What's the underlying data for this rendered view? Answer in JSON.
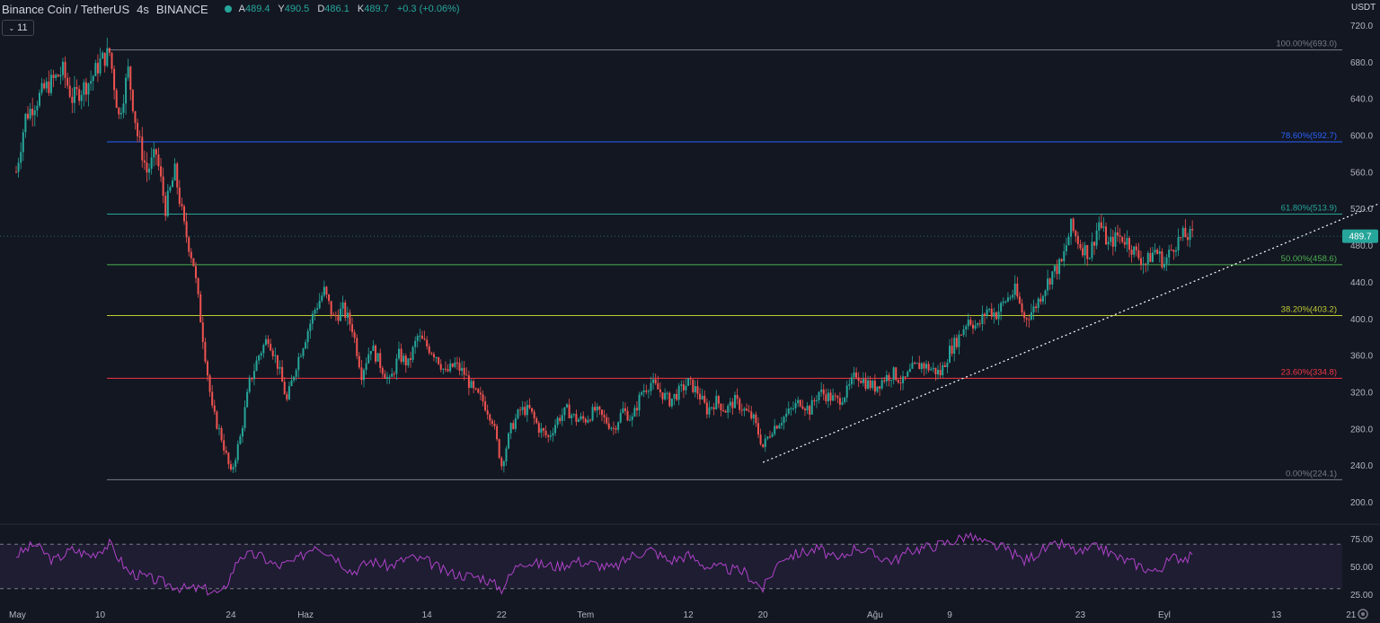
{
  "header": {
    "symbol": "Binance Coin / TetherUS",
    "timeframe": "4s",
    "exchange": "BINANCE",
    "open_label": "A",
    "open": "489.4",
    "high_label": "Y",
    "high": "490.5",
    "low_label": "D",
    "low": "486.1",
    "close_label": "K",
    "close": "489.7",
    "change": "+0.3 (+0.06%)"
  },
  "indicator_toggle": {
    "chevron": "⌄",
    "count": "11"
  },
  "colors": {
    "background": "#131722",
    "up": "#26a69a",
    "down": "#ef5350",
    "rsi": "#9c27b0",
    "price_badge": "#26a69a"
  },
  "chart_data": {
    "type": "candlestick",
    "symbol": "BNB/USDT",
    "y_axis": {
      "unit": "USDT",
      "ticks": [
        200,
        240,
        280,
        320,
        360,
        400,
        440,
        480,
        520,
        560,
        600,
        640,
        680,
        720
      ],
      "range": [
        180,
        728
      ]
    },
    "x_axis": {
      "ticks": [
        {
          "label": "May",
          "day": 0
        },
        {
          "label": "10",
          "day": 9
        },
        {
          "label": "24",
          "day": 23
        },
        {
          "label": "Haz",
          "day": 31
        },
        {
          "label": "14",
          "day": 44
        },
        {
          "label": "22",
          "day": 52
        },
        {
          "label": "Tem",
          "day": 61
        },
        {
          "label": "12",
          "day": 72
        },
        {
          "label": "20",
          "day": 80
        },
        {
          "label": "Ağu",
          "day": 92
        },
        {
          "label": "9",
          "day": 100
        },
        {
          "label": "23",
          "day": 114
        },
        {
          "label": "Eyl",
          "day": 123
        },
        {
          "label": "13",
          "day": 135
        },
        {
          "label": "21",
          "day": 143
        }
      ]
    },
    "current_price": "489.7",
    "fibonacci": [
      {
        "label": "100.00%(693.0)",
        "price": 693.0,
        "color": "#787b86"
      },
      {
        "label": "78.60%(592.7)",
        "price": 592.7,
        "color": "#2962ff"
      },
      {
        "label": "61.80%(513.9)",
        "price": 513.9,
        "color": "#26a69a"
      },
      {
        "label": "50.00%(458.6)",
        "price": 458.6,
        "color": "#4caf50"
      },
      {
        "label": "38.20%(403.2)",
        "price": 403.2,
        "color": "#c0ca33"
      },
      {
        "label": "23.60%(334.8)",
        "price": 334.8,
        "color": "#f23645"
      },
      {
        "label": "0.00%(224.1)",
        "price": 224.1,
        "color": "#787b86"
      }
    ],
    "fib_start_day": 10.8,
    "trendline": {
      "from": {
        "day": 80,
        "price": 243
      },
      "to": {
        "day": 156,
        "price": 568
      }
    },
    "price_path": [
      [
        0,
        560
      ],
      [
        1,
        620
      ],
      [
        3,
        650
      ],
      [
        5,
        670
      ],
      [
        6,
        640
      ],
      [
        8,
        660
      ],
      [
        9,
        680
      ],
      [
        10,
        690
      ],
      [
        11,
        620
      ],
      [
        12,
        670
      ],
      [
        13,
        600
      ],
      [
        14,
        560
      ],
      [
        15,
        580
      ],
      [
        16,
        520
      ],
      [
        17,
        560
      ],
      [
        18,
        500
      ],
      [
        19,
        460
      ],
      [
        20,
        380
      ],
      [
        21,
        300
      ],
      [
        22,
        270
      ],
      [
        23,
        230
      ],
      [
        24,
        270
      ],
      [
        25,
        330
      ],
      [
        26,
        360
      ],
      [
        27,
        380
      ],
      [
        28,
        350
      ],
      [
        29,
        310
      ],
      [
        30,
        350
      ],
      [
        31,
        380
      ],
      [
        32,
        410
      ],
      [
        33,
        430
      ],
      [
        34,
        400
      ],
      [
        35,
        410
      ],
      [
        36,
        390
      ],
      [
        37,
        340
      ],
      [
        38,
        370
      ],
      [
        39,
        350
      ],
      [
        40,
        330
      ],
      [
        41,
        360
      ],
      [
        42,
        350
      ],
      [
        43,
        380
      ],
      [
        44,
        370
      ],
      [
        45,
        360
      ],
      [
        46,
        340
      ],
      [
        47,
        350
      ],
      [
        48,
        340
      ],
      [
        49,
        320
      ],
      [
        50,
        310
      ],
      [
        51,
        290
      ],
      [
        52,
        240
      ],
      [
        53,
        280
      ],
      [
        54,
        300
      ],
      [
        55,
        300
      ],
      [
        56,
        280
      ],
      [
        57,
        270
      ],
      [
        58,
        290
      ],
      [
        59,
        300
      ],
      [
        60,
        290
      ],
      [
        61,
        290
      ],
      [
        62,
        300
      ],
      [
        63,
        290
      ],
      [
        64,
        280
      ],
      [
        65,
        300
      ],
      [
        66,
        290
      ],
      [
        67,
        320
      ],
      [
        68,
        330
      ],
      [
        69,
        320
      ],
      [
        70,
        310
      ],
      [
        71,
        320
      ],
      [
        72,
        330
      ],
      [
        73,
        320
      ],
      [
        74,
        300
      ],
      [
        75,
        310
      ],
      [
        76,
        300
      ],
      [
        77,
        310
      ],
      [
        78,
        300
      ],
      [
        79,
        290
      ],
      [
        80,
        260
      ],
      [
        81,
        280
      ],
      [
        82,
        290
      ],
      [
        83,
        300
      ],
      [
        84,
        310
      ],
      [
        85,
        300
      ],
      [
        86,
        320
      ],
      [
        87,
        315
      ],
      [
        88,
        310
      ],
      [
        89,
        320
      ],
      [
        90,
        340
      ],
      [
        91,
        330
      ],
      [
        92,
        325
      ],
      [
        93,
        335
      ],
      [
        94,
        340
      ],
      [
        95,
        330
      ],
      [
        96,
        345
      ],
      [
        97,
        350
      ],
      [
        98,
        345
      ],
      [
        99,
        340
      ],
      [
        100,
        365
      ],
      [
        101,
        380
      ],
      [
        102,
        400
      ],
      [
        103,
        390
      ],
      [
        104,
        410
      ],
      [
        105,
        405
      ],
      [
        106,
        420
      ],
      [
        107,
        430
      ],
      [
        108,
        400
      ],
      [
        109,
        410
      ],
      [
        110,
        430
      ],
      [
        111,
        450
      ],
      [
        112,
        460
      ],
      [
        113,
        500
      ],
      [
        114,
        480
      ],
      [
        115,
        470
      ],
      [
        116,
        505
      ],
      [
        117,
        480
      ],
      [
        118,
        490
      ],
      [
        119,
        485
      ],
      [
        120,
        470
      ],
      [
        121,
        460
      ],
      [
        122,
        475
      ],
      [
        123,
        460
      ],
      [
        124,
        480
      ],
      [
        125,
        490
      ],
      [
        126,
        489.7
      ]
    ],
    "rsi": {
      "label_ticks": [
        "75.00",
        "50.00",
        "25.00"
      ],
      "levels": [
        70,
        30
      ],
      "path": [
        [
          0,
          60
        ],
        [
          2,
          70
        ],
        [
          4,
          55
        ],
        [
          6,
          65
        ],
        [
          8,
          60
        ],
        [
          10,
          70
        ],
        [
          12,
          45
        ],
        [
          14,
          40
        ],
        [
          16,
          35
        ],
        [
          18,
          30
        ],
        [
          20,
          30
        ],
        [
          22,
          25
        ],
        [
          24,
          60
        ],
        [
          26,
          60
        ],
        [
          28,
          50
        ],
        [
          30,
          55
        ],
        [
          32,
          70
        ],
        [
          34,
          60
        ],
        [
          36,
          45
        ],
        [
          38,
          55
        ],
        [
          40,
          50
        ],
        [
          42,
          58
        ],
        [
          44,
          55
        ],
        [
          46,
          45
        ],
        [
          48,
          42
        ],
        [
          50,
          40
        ],
        [
          52,
          30
        ],
        [
          54,
          55
        ],
        [
          56,
          52
        ],
        [
          58,
          50
        ],
        [
          60,
          55
        ],
        [
          62,
          52
        ],
        [
          64,
          48
        ],
        [
          66,
          60
        ],
        [
          68,
          65
        ],
        [
          70,
          55
        ],
        [
          72,
          60
        ],
        [
          74,
          50
        ],
        [
          76,
          48
        ],
        [
          78,
          45
        ],
        [
          80,
          30
        ],
        [
          82,
          58
        ],
        [
          84,
          62
        ],
        [
          86,
          66
        ],
        [
          88,
          55
        ],
        [
          90,
          68
        ],
        [
          92,
          60
        ],
        [
          94,
          55
        ],
        [
          96,
          65
        ],
        [
          98,
          68
        ],
        [
          100,
          72
        ],
        [
          102,
          78
        ],
        [
          104,
          70
        ],
        [
          106,
          66
        ],
        [
          108,
          55
        ],
        [
          110,
          65
        ],
        [
          112,
          70
        ],
        [
          114,
          62
        ],
        [
          116,
          68
        ],
        [
          118,
          58
        ],
        [
          120,
          52
        ],
        [
          122,
          45
        ],
        [
          124,
          58
        ],
        [
          126,
          58
        ]
      ]
    }
  }
}
